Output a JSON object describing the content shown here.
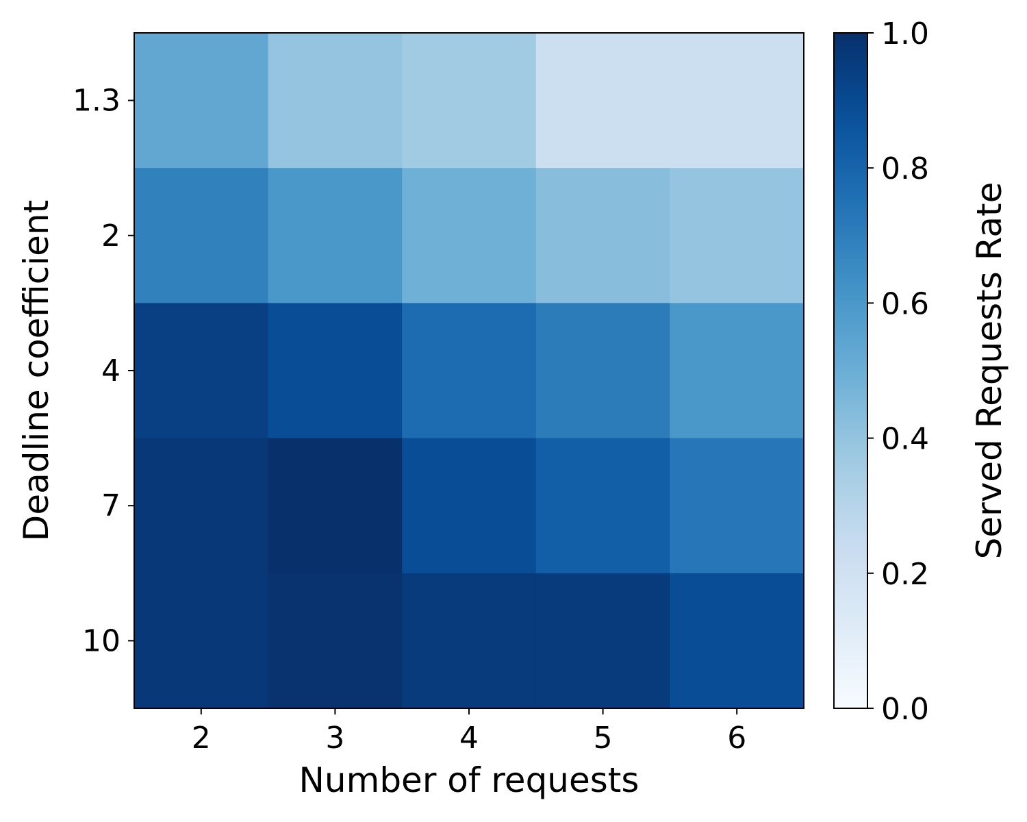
{
  "chart_data": {
    "type": "heatmap",
    "colormap": "Blues",
    "xlabel": "Number of requests",
    "ylabel": "Deadline coefficient",
    "x_categories": [
      "2",
      "3",
      "4",
      "5",
      "6"
    ],
    "y_categories": [
      "1.3",
      "2",
      "4",
      "7",
      "10"
    ],
    "values": [
      [
        0.53,
        0.4,
        0.37,
        0.22,
        0.22
      ],
      [
        0.69,
        0.6,
        0.49,
        0.43,
        0.4
      ],
      [
        0.94,
        0.89,
        0.77,
        0.71,
        0.6
      ],
      [
        0.97,
        1.0,
        0.89,
        0.82,
        0.73
      ],
      [
        0.97,
        0.99,
        0.96,
        0.96,
        0.89
      ]
    ],
    "colorbar": {
      "label": "Served Requests Rate",
      "range": [
        0.0,
        1.0
      ],
      "ticks": [
        "0.0",
        "0.2",
        "0.4",
        "0.6",
        "0.8",
        "1.0"
      ]
    }
  }
}
